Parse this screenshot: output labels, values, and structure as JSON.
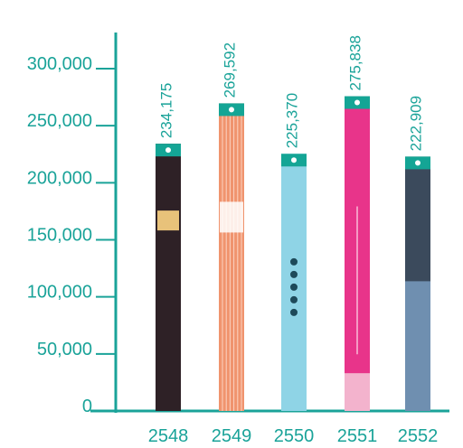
{
  "chart_data": {
    "type": "bar",
    "title": "",
    "xlabel": "",
    "ylabel": "",
    "categories": [
      "2548",
      "2549",
      "2550",
      "2551",
      "2552"
    ],
    "values": [
      234175,
      269592,
      225370,
      275838,
      222909
    ],
    "value_labels": [
      "234,175",
      "269,592",
      "225,370",
      "275,838",
      "222,909"
    ],
    "ylim": [
      0,
      300000
    ],
    "yticks": [
      0,
      50000,
      100000,
      150000,
      200000,
      250000,
      300000
    ],
    "ytick_labels": [
      "0",
      "50,000",
      "100,000",
      "150,000",
      "200,000",
      "250,000",
      "300,000"
    ],
    "grid": false,
    "legend": "none",
    "bars_styled_as": "book-spines",
    "colors": {
      "axis": "#1aa399",
      "text": "#1aa399",
      "cap": "#14a595",
      "bars": [
        "#2e2126",
        "#f0946e",
        "#8fd4e6",
        "#e8348a",
        "#3b4a5c"
      ]
    }
  }
}
